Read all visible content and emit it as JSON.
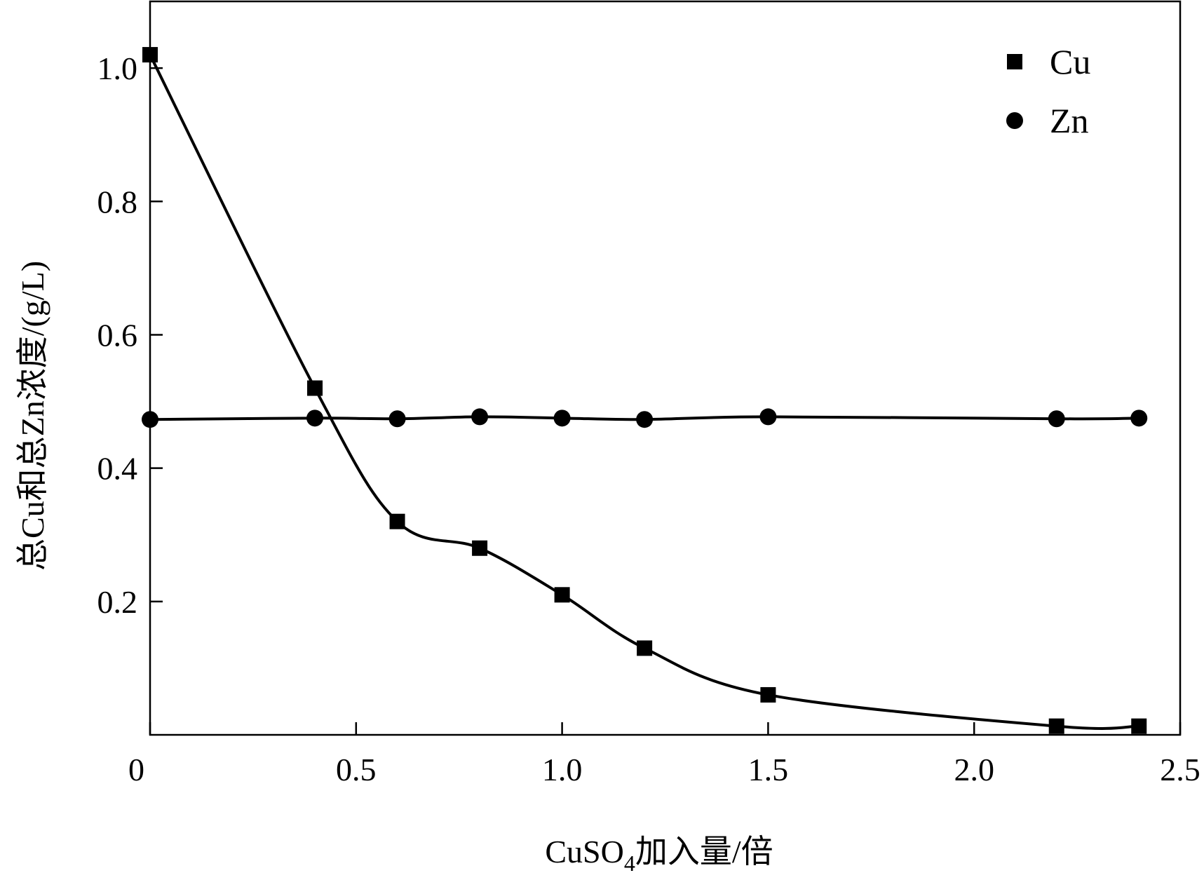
{
  "chart_data": {
    "type": "line",
    "xlabel": {
      "prefix": "CuSO",
      "subscript": "4",
      "suffix": "加入量/倍"
    },
    "ylabel": "总Cu和总Zn浓度/(g/L)",
    "xlim": [
      0,
      2.5
    ],
    "ylim": [
      0,
      1.1
    ],
    "x_ticks": [
      {
        "value": 0,
        "label": "0"
      },
      {
        "value": 0.5,
        "label": "0.5"
      },
      {
        "value": 1.0,
        "label": "1.0"
      },
      {
        "value": 1.5,
        "label": "1.5"
      },
      {
        "value": 2.0,
        "label": "2.0"
      },
      {
        "value": 2.5,
        "label": "2.5"
      }
    ],
    "y_ticks": [
      {
        "value": 0.2,
        "label": "0.2"
      },
      {
        "value": 0.4,
        "label": "0.4"
      },
      {
        "value": 0.6,
        "label": "0.6"
      },
      {
        "value": 0.8,
        "label": "0.8"
      },
      {
        "value": 1.0,
        "label": "1.0"
      }
    ],
    "grid": false,
    "legend_position": "top-right",
    "series": [
      {
        "name": "Cu",
        "marker": "square",
        "x": [
          0,
          0.4,
          0.6,
          0.8,
          1.0,
          1.2,
          1.5,
          2.2,
          2.4
        ],
        "y": [
          1.02,
          0.52,
          0.32,
          0.28,
          0.21,
          0.13,
          0.06,
          0.013,
          0.013
        ]
      },
      {
        "name": "Zn",
        "marker": "circle",
        "x": [
          0,
          0.4,
          0.6,
          0.8,
          1.0,
          1.2,
          1.5,
          2.2,
          2.4
        ],
        "y": [
          0.473,
          0.475,
          0.474,
          0.477,
          0.475,
          0.473,
          0.477,
          0.474,
          0.475
        ]
      }
    ],
    "colors": {
      "line": "#000000",
      "marker": "#000000",
      "background": "#ffffff"
    }
  }
}
